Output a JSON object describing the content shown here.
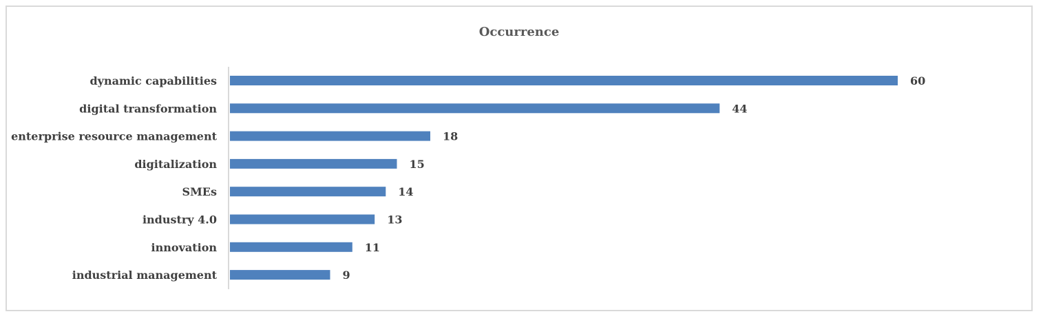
{
  "chart_data": {
    "type": "bar",
    "orientation": "horizontal",
    "title": "Occurrence",
    "categories": [
      "dynamic capabilities",
      "digital transformation",
      "enterprise resource management",
      "digitalization",
      "SMEs",
      "industry 4.0",
      "innovation",
      "industrial management"
    ],
    "values": [
      60,
      44,
      18,
      15,
      14,
      13,
      11,
      9
    ],
    "xlabel": "",
    "ylabel": "",
    "xlim": [
      0,
      60
    ],
    "grid": false,
    "legend": "none",
    "bar_color": "#4f81bd",
    "axis_color": "#d9d9d9"
  }
}
